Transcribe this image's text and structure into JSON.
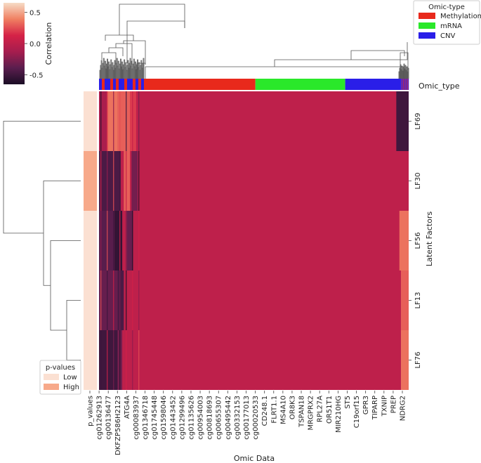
{
  "chart_data": {
    "type": "heatmap",
    "title": "",
    "xlabel": "Omic Data",
    "ylabel": "Latent Factors",
    "rows": [
      "LF69",
      "LF30",
      "LF56",
      "LF13",
      "LF76"
    ],
    "x_tick_labels": [
      "p_values",
      "cg01262913",
      "cg00136477",
      "DKFZP586H2123",
      "ATG4A",
      "cg00083937",
      "cg01346718",
      "cg01745448",
      "cg01598046",
      "cg01443452",
      "cg01299496",
      "cg01135626",
      "cg00954003",
      "cg00818693",
      "cg00655307",
      "cg00495442",
      "cg00332153",
      "cg00177013",
      "cg00020533",
      "CD248.1",
      "FLRT1.1",
      "MS4A10",
      "OR8K3",
      "TSPAN18",
      "MRGPRX2",
      "RPL27A",
      "OR51T1",
      "MIR210HG",
      "ST5",
      "C19orf15",
      "GPR3",
      "TIPARP",
      "TXNIP",
      "PREP",
      "NDRG2"
    ],
    "colorbar": {
      "label": "Correlation",
      "ticks": [
        "0.5",
        "0.0",
        "-0.5"
      ],
      "range": [
        -0.65,
        0.65
      ],
      "stops": [
        "#f6dcc6",
        "#f08062",
        "#d52247",
        "#a61d4e",
        "#5a1e4e",
        "#1a0d25"
      ]
    },
    "omic_type_legend": {
      "title": "Omic-type",
      "entries": [
        {
          "label": "Methylation",
          "color": "#e8291c"
        },
        {
          "label": "mRNA",
          "color": "#2ae82a"
        },
        {
          "label": "CNV",
          "color": "#2a1ee8"
        }
      ]
    },
    "omic_type_row_label": "Omic_type",
    "pvalue_legend": {
      "title": "p-values",
      "entries": [
        {
          "label": "Low",
          "color": "#fbe0d2"
        },
        {
          "label": "High",
          "color": "#f7a98a"
        }
      ]
    },
    "p_value_levels": [
      "Low",
      "High",
      "Low",
      "Low",
      "Low"
    ],
    "base_correlation": 0.0,
    "color_blocks": [
      {
        "row": 0,
        "from": 0.0,
        "to": 0.025,
        "value": -0.1
      },
      {
        "row": 0,
        "from": 0.025,
        "to": 0.06,
        "value": 0.35
      },
      {
        "row": 0,
        "from": 0.06,
        "to": 0.1,
        "value": 0.3
      },
      {
        "row": 0,
        "from": 0.1,
        "to": 0.12,
        "value": 0.2
      },
      {
        "row": 1,
        "from": 0.0,
        "to": 0.07,
        "value": -0.45
      },
      {
        "row": 1,
        "from": 0.08,
        "to": 0.1,
        "value": 0.3
      },
      {
        "row": 1,
        "from": 0.105,
        "to": 0.125,
        "value": -0.3
      },
      {
        "row": 2,
        "from": 0.0,
        "to": 0.05,
        "value": -0.4
      },
      {
        "row": 2,
        "from": 0.05,
        "to": 0.075,
        "value": -0.55
      },
      {
        "row": 2,
        "from": 0.09,
        "to": 0.11,
        "value": -0.35
      },
      {
        "row": 2,
        "from": 0.97,
        "to": 1.0,
        "value": 0.35
      },
      {
        "row": 3,
        "from": 0.0,
        "to": 0.06,
        "value": -0.35
      },
      {
        "row": 3,
        "from": 0.06,
        "to": 0.08,
        "value": -0.45
      },
      {
        "row": 3,
        "from": 0.975,
        "to": 1.0,
        "value": 0.3
      },
      {
        "row": 4,
        "from": 0.0,
        "to": 0.06,
        "value": -0.5
      },
      {
        "row": 4,
        "from": 0.06,
        "to": 0.075,
        "value": -0.3
      },
      {
        "row": 4,
        "from": 0.975,
        "to": 1.0,
        "value": 0.35
      },
      {
        "row": 0,
        "from": 0.96,
        "to": 1.0,
        "value": -0.5
      }
    ]
  }
}
